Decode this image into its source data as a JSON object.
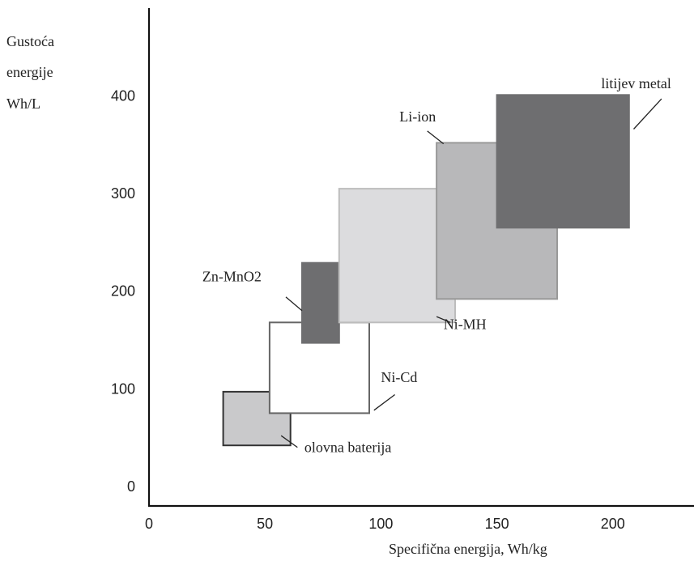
{
  "chart_data": {
    "type": "range-rectangles",
    "title": "",
    "xlabel": "Specifična energija, Wh/kg",
    "ylabel_lines": [
      "Gustoća",
      "energije",
      "Wh/L"
    ],
    "xlim": [
      0,
      235
    ],
    "ylim": [
      -20,
      490
    ],
    "x_ticks": [
      0,
      50,
      100,
      150,
      200
    ],
    "y_ticks": [
      0,
      100,
      200,
      300,
      400
    ],
    "grid": false,
    "series": [
      {
        "name": "olovna baterija",
        "x_range": [
          32,
          61
        ],
        "y_range": [
          42,
          97
        ],
        "fill": "#c9c9cb",
        "stroke": "#333333",
        "label_pos": [
          67,
          35
        ],
        "leader": [
          [
            57,
            52
          ],
          [
            64,
            40
          ]
        ]
      },
      {
        "name": "Ni-Cd",
        "x_range": [
          52,
          95
        ],
        "y_range": [
          75,
          168
        ],
        "fill": "#ffffff",
        "stroke": "#666666",
        "label_pos": [
          100,
          107
        ],
        "leader": [
          [
            97,
            78
          ],
          [
            106,
            94
          ]
        ]
      },
      {
        "name": "Zn-MnO2",
        "x_range": [
          66,
          82
        ],
        "y_range": [
          147,
          229
        ],
        "fill": "#6e6e70",
        "stroke": "#6e6e70",
        "label_pos": [
          23,
          210
        ],
        "leader": [
          [
            59,
            194
          ],
          [
            66,
            180
          ]
        ]
      },
      {
        "name": "Ni-MH",
        "x_range": [
          82,
          132
        ],
        "y_range": [
          168,
          305
        ],
        "fill": "#dcdcde",
        "stroke": "#bdbdbd",
        "label_pos": [
          127,
          161
        ],
        "leader": [
          [
            124,
            174
          ],
          [
            130,
            168
          ]
        ]
      },
      {
        "name": "Li-ion",
        "x_range": [
          124,
          176
        ],
        "y_range": [
          192,
          352
        ],
        "fill": "#b8b8ba",
        "stroke": "#999999",
        "label_pos": [
          108,
          374
        ],
        "leader": [
          [
            120,
            364
          ],
          [
            127,
            351
          ]
        ]
      },
      {
        "name": "litijev metal",
        "x_range": [
          150,
          207
        ],
        "y_range": [
          265,
          401
        ],
        "fill": "#6e6e70",
        "stroke": "#6e6e70",
        "label_pos": [
          195,
          408
        ],
        "leader": [
          [
            209,
            366
          ],
          [
            221,
            397
          ]
        ]
      }
    ]
  }
}
